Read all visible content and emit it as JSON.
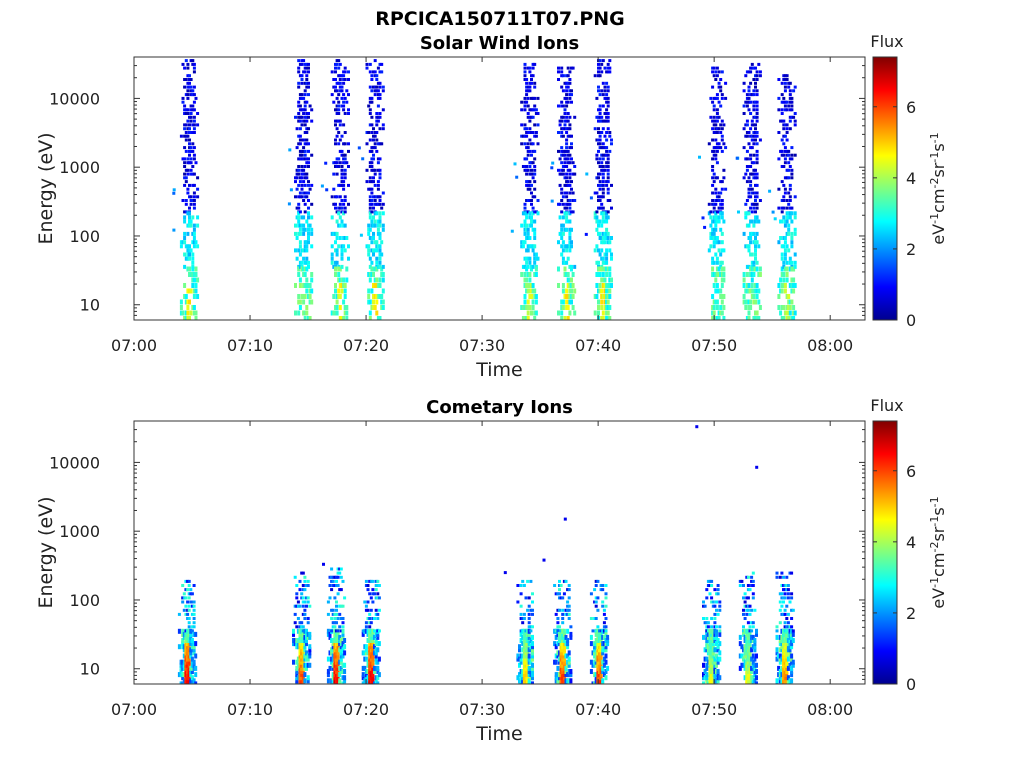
{
  "figure_title": "RPCICA150711T07.PNG",
  "chart_data": [
    {
      "type": "heatmap",
      "title": "Solar Wind Ions",
      "xlabel": "Time",
      "ylabel": "Energy (eV)",
      "x_ticks": [
        "07:00",
        "07:10",
        "07:20",
        "07:30",
        "07:40",
        "07:50",
        "08:00"
      ],
      "x_range": [
        "07:00",
        "08:03"
      ],
      "y_scale": "log",
      "y_ticks": [
        "10",
        "100",
        "1000",
        "10000"
      ],
      "y_range": [
        6,
        40000
      ],
      "colorbar": {
        "title": "Flux",
        "unit_label": "eV-1cm-2sr-1s-1",
        "ticks": [
          "0",
          "2",
          "4",
          "6"
        ],
        "range": [
          0,
          7.4
        ],
        "colormap": "jet"
      },
      "bursts": [
        {
          "time": "07:04:50",
          "max_energy": 38000,
          "high_flux": 5
        },
        {
          "time": "07:14:40",
          "max_energy": 36000,
          "high_flux": 4
        },
        {
          "time": "07:17:50",
          "max_energy": 38000,
          "high_flux": 5
        },
        {
          "time": "07:20:50",
          "max_energy": 38000,
          "high_flux": 5
        },
        {
          "time": "07:34:10",
          "max_energy": 32000,
          "high_flux": 4.5
        },
        {
          "time": "07:37:20",
          "max_energy": 28000,
          "high_flux": 5
        },
        {
          "time": "07:40:30",
          "max_energy": 40000,
          "high_flux": 5
        },
        {
          "time": "07:50:20",
          "max_energy": 30000,
          "high_flux": 3.5
        },
        {
          "time": "07:53:20",
          "max_energy": 34000,
          "high_flux": 4
        },
        {
          "time": "07:56:20",
          "max_energy": 22000,
          "high_flux": 4.5
        }
      ]
    },
    {
      "type": "heatmap",
      "title": "Cometary Ions",
      "xlabel": "Time",
      "ylabel": "Energy (eV)",
      "x_ticks": [
        "07:00",
        "07:10",
        "07:20",
        "07:30",
        "07:40",
        "07:50",
        "08:00"
      ],
      "x_range": [
        "07:00",
        "08:03"
      ],
      "y_scale": "log",
      "y_ticks": [
        "10",
        "100",
        "1000",
        "10000"
      ],
      "y_range": [
        6,
        40000
      ],
      "colorbar": {
        "title": "Flux",
        "unit_label": "eV-1cm-2sr-1s-1",
        "ticks": [
          "0",
          "2",
          "4",
          "6"
        ],
        "range": [
          0,
          7.4
        ],
        "colormap": "jet"
      },
      "bursts": [
        {
          "time": "07:04:40",
          "max_energy": 200,
          "peak_flux": 7.0
        },
        {
          "time": "07:14:30",
          "max_energy": 250,
          "peak_flux": 6.5
        },
        {
          "time": "07:17:30",
          "max_energy": 300,
          "peak_flux": 7.0
        },
        {
          "time": "07:20:30",
          "max_energy": 200,
          "peak_flux": 7.0
        },
        {
          "time": "07:33:50",
          "max_energy": 200,
          "peak_flux": 5.5
        },
        {
          "time": "07:37:00",
          "max_energy": 200,
          "peak_flux": 6.5
        },
        {
          "time": "07:40:10",
          "max_energy": 200,
          "peak_flux": 6.5
        },
        {
          "time": "07:49:50",
          "max_energy": 200,
          "peak_flux": 5.0
        },
        {
          "time": "07:53:00",
          "max_energy": 250,
          "peak_flux": 5.0
        },
        {
          "time": "07:56:10",
          "max_energy": 250,
          "peak_flux": 6.0
        }
      ],
      "isolated_points": [
        {
          "time": "07:48:30",
          "energy": 33000
        },
        {
          "time": "07:53:40",
          "energy": 8500
        },
        {
          "time": "07:37:10",
          "energy": 1500
        },
        {
          "time": "07:35:20",
          "energy": 380
        },
        {
          "time": "07:32:00",
          "energy": 250
        },
        {
          "time": "07:16:20",
          "energy": 330
        }
      ]
    }
  ]
}
